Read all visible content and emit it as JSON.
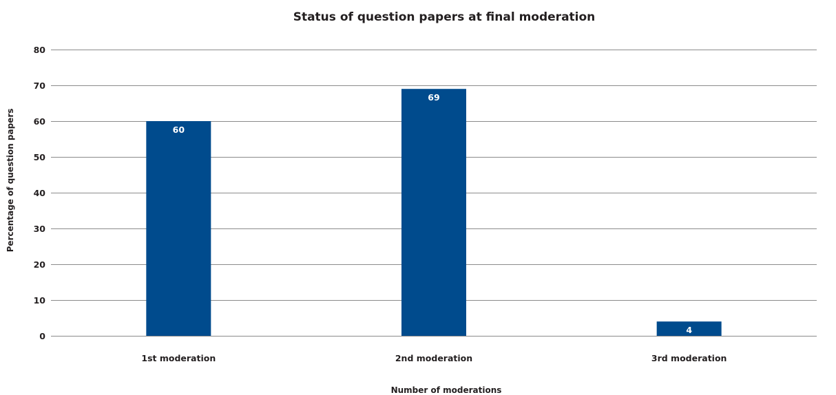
{
  "chart_data": {
    "type": "bar",
    "title": "Status of question papers at final moderation",
    "xlabel": "Number of moderations",
    "ylabel": "Percentage of question papers",
    "categories": [
      "1st moderation",
      "2nd moderation",
      "3rd moderation"
    ],
    "values": [
      60,
      69,
      4
    ],
    "data_labels": [
      "60",
      "69",
      "4"
    ],
    "ylim": [
      0,
      80
    ],
    "yticks": [
      0,
      10,
      20,
      30,
      40,
      50,
      60,
      70,
      80
    ],
    "grid": true,
    "legend": "none",
    "bar_color": "#004b8d"
  }
}
